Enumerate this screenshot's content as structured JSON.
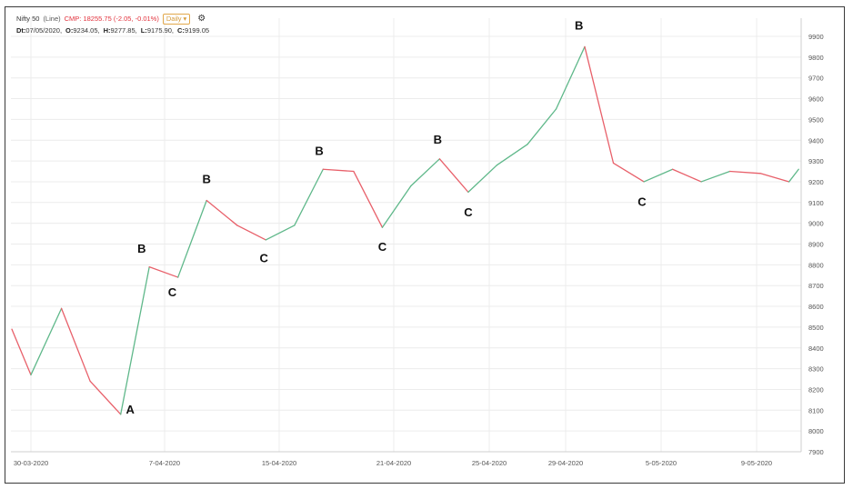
{
  "header": {
    "title": "Nifty 50",
    "type_label": "(Line)",
    "cmp_text": "CMP: 18255.75 (-2.05, -0.01%)",
    "interval": "Daily",
    "interval_arrow": "▾",
    "gear_icon": "gear-icon",
    "dt_label": "Dt:",
    "dt_value": "07/05/2020,",
    "o_label": "O:",
    "o_value": "9234.05,",
    "h_label": "H:",
    "h_value": "9277.85,",
    "l_label": "L:",
    "l_value": "9175.90,",
    "c_label": "C:",
    "c_value": "9199.05"
  },
  "colors": {
    "up": "#5fb88a",
    "down": "#e8606a",
    "grid": "#ececec",
    "frame": "#3a3a3a"
  },
  "chart_data": {
    "type": "line",
    "title": "Nifty 50",
    "ylim": [
      7900,
      9900
    ],
    "y_ticks": [
      7900,
      8000,
      8100,
      8200,
      8300,
      8400,
      8500,
      8600,
      8700,
      8800,
      8900,
      9000,
      9100,
      9200,
      9300,
      9400,
      9500,
      9600,
      9700,
      9800,
      9900
    ],
    "x_tick_labels": [
      "30-03-2020",
      "7-04-2020",
      "15-04-2020",
      "21-04-2020",
      "25-04-2020",
      "29-04-2020",
      "5-05-2020",
      "9-05-2020"
    ],
    "x_tick_index": [
      1,
      8,
      14,
      20,
      25,
      29,
      34,
      39
    ],
    "grid": true,
    "series": [
      {
        "values": [
          8490,
          8270,
          8590,
          8240,
          8080,
          8790,
          8740,
          9110,
          8990,
          8920,
          8990,
          9260,
          9250,
          8980,
          9180,
          9310,
          9150,
          9280,
          9380,
          9550,
          9850,
          9290,
          9200,
          9260,
          9200,
          9250,
          9240,
          9200,
          9260
        ],
        "x_index": [
          0,
          1,
          2.6,
          4.1,
          5.7,
          7.2,
          8.7,
          10.2,
          11.8,
          13.3,
          14.8,
          16.3,
          17.9,
          19.4,
          20.9,
          22.4,
          23.9,
          25.4,
          27,
          28.5,
          30,
          31.5,
          33.1,
          34.6,
          36.1,
          37.6,
          39.2,
          40.7,
          41.2
        ]
      }
    ],
    "annotations": [
      {
        "text": "A",
        "x_index": 6.2,
        "y_value": 8105
      },
      {
        "text": "B",
        "x_index": 6.8,
        "y_value": 8880
      },
      {
        "text": "C",
        "x_index": 8.4,
        "y_value": 8670
      },
      {
        "text": "B",
        "x_index": 10.2,
        "y_value": 9215
      },
      {
        "text": "C",
        "x_index": 13.2,
        "y_value": 8835
      },
      {
        "text": "B",
        "x_index": 16.1,
        "y_value": 9350
      },
      {
        "text": "C",
        "x_index": 19.4,
        "y_value": 8890
      },
      {
        "text": "B",
        "x_index": 22.3,
        "y_value": 9405
      },
      {
        "text": "C",
        "x_index": 23.9,
        "y_value": 9055
      },
      {
        "text": "B",
        "x_index": 29.7,
        "y_value": 9955
      },
      {
        "text": "C",
        "x_index": 33.0,
        "y_value": 9105
      }
    ]
  }
}
